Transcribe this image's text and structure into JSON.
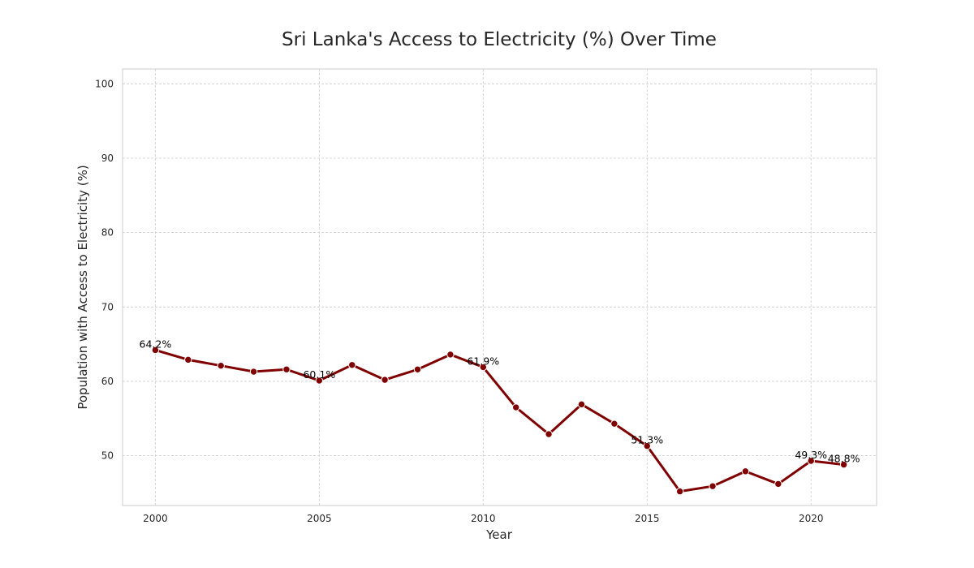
{
  "chart_data": {
    "type": "line",
    "title": "Sri Lanka's Access to Electricity (%) Over Time",
    "xlabel": "Year",
    "ylabel": "Population with Access to Electricity (%)",
    "xlim": [
      1999,
      2022
    ],
    "ylim": [
      43.3,
      102
    ],
    "x_ticks": [
      2000,
      2005,
      2010,
      2015,
      2020
    ],
    "y_ticks": [
      50,
      60,
      70,
      80,
      90,
      100
    ],
    "grid": true,
    "legend": "none",
    "series": [
      {
        "x": [
          2000,
          2001,
          2002,
          2003,
          2004,
          2005,
          2006,
          2007,
          2008,
          2009,
          2010,
          2011,
          2012,
          2013,
          2014,
          2015,
          2016,
          2017,
          2018,
          2019,
          2020,
          2021
        ],
        "values": [
          64.2,
          62.9,
          62.1,
          61.3,
          61.6,
          60.1,
          62.2,
          60.2,
          61.6,
          63.6,
          61.9,
          56.5,
          52.9,
          56.9,
          54.3,
          51.3,
          45.2,
          45.9,
          47.9,
          46.2,
          49.3,
          48.8
        ],
        "color": "#800000"
      }
    ],
    "annotations": [
      {
        "x": 2000,
        "y": 64.2,
        "text": "64.2%"
      },
      {
        "x": 2005,
        "y": 60.1,
        "text": "60.1%"
      },
      {
        "x": 2010,
        "y": 61.9,
        "text": "61.9%"
      },
      {
        "x": 2015,
        "y": 51.3,
        "text": "51.3%"
      },
      {
        "x": 2020,
        "y": 49.3,
        "text": "49.3%"
      },
      {
        "x": 2021,
        "y": 48.8,
        "text": "48.8%"
      }
    ]
  }
}
